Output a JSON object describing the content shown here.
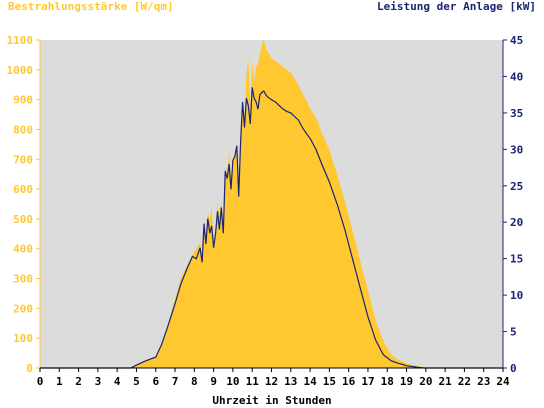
{
  "chart_data": {
    "type": "area",
    "ylabel_left": "Bestrahlungsstärke [W/qm]",
    "ylabel_right": "Leistung der Anlage [kW]",
    "xlabel": "Uhrzeit in Stunden",
    "xlim": [
      0,
      24
    ],
    "ylim_left": [
      0,
      1100
    ],
    "ylim_right": [
      0,
      45
    ],
    "x_ticks": [
      "0",
      "1",
      "2",
      "3",
      "4",
      "5",
      "6",
      "7",
      "8",
      "9",
      "10",
      "11",
      "12",
      "13",
      "14",
      "15",
      "16",
      "17",
      "18",
      "19",
      "20",
      "21",
      "22",
      "23",
      "24"
    ],
    "y_left_ticks": [
      "0",
      "100",
      "200",
      "300",
      "400",
      "500",
      "600",
      "700",
      "800",
      "900",
      "1000",
      "1100"
    ],
    "y_right_ticks": [
      "0",
      "5",
      "10",
      "15",
      "20",
      "25",
      "30",
      "35",
      "40",
      "45"
    ],
    "colors": {
      "irradiance": "#ffc830",
      "power": "#1a2470",
      "plot_bg": "#dcdcdc",
      "left_axis": "#ffc830",
      "right_axis": "#1a2470"
    },
    "series": [
      {
        "name": "Bestrahlungsstärke [W/qm]",
        "axis": "left",
        "x": [
          0,
          4.7,
          5,
          5.5,
          6,
          6.3,
          6.6,
          7,
          7.3,
          7.6,
          7.9,
          8.1,
          8.3,
          8.4,
          8.5,
          8.6,
          8.7,
          8.8,
          8.9,
          9.0,
          9.1,
          9.2,
          9.3,
          9.4,
          9.5,
          9.6,
          9.7,
          9.8,
          9.9,
          10.0,
          10.1,
          10.2,
          10.3,
          10.4,
          10.5,
          10.6,
          10.7,
          10.8,
          10.9,
          11.0,
          11.1,
          11.2,
          11.3,
          11.4,
          11.5,
          11.6,
          11.7,
          11.8,
          11.9,
          12.0,
          12.2,
          12.4,
          12.6,
          12.8,
          13.0,
          13.2,
          13.4,
          13.6,
          13.8,
          14.0,
          14.3,
          14.6,
          15.0,
          15.4,
          15.8,
          16.2,
          16.6,
          17.0,
          17.4,
          17.8,
          18.2,
          18.5,
          18.8,
          19.0,
          19.3,
          19.6,
          19.9,
          20.1,
          20.3,
          20.5,
          24
        ],
        "values": [
          0,
          0,
          10,
          25,
          40,
          80,
          140,
          230,
          300,
          340,
          380,
          400,
          420,
          360,
          470,
          430,
          520,
          500,
          540,
          420,
          470,
          560,
          510,
          560,
          480,
          680,
          650,
          730,
          640,
          690,
          720,
          750,
          580,
          770,
          880,
          820,
          980,
          1040,
          860,
          1030,
          960,
          1010,
          1020,
          1050,
          1090,
          1100,
          1070,
          1060,
          1050,
          1040,
          1030,
          1020,
          1010,
          1000,
          990,
          970,
          950,
          920,
          900,
          870,
          840,
          790,
          730,
          650,
          560,
          460,
          360,
          260,
          160,
          90,
          45,
          30,
          22,
          15,
          10,
          6,
          3,
          1,
          0,
          0,
          0
        ]
      },
      {
        "name": "Leistung der Anlage [kW]",
        "axis": "right",
        "x": [
          0,
          4.7,
          5,
          5.5,
          6,
          6.3,
          6.6,
          7,
          7.3,
          7.6,
          7.9,
          8.1,
          8.3,
          8.4,
          8.5,
          8.6,
          8.7,
          8.8,
          8.9,
          9.0,
          9.1,
          9.2,
          9.3,
          9.4,
          9.5,
          9.6,
          9.7,
          9.8,
          9.9,
          10.0,
          10.1,
          10.2,
          10.3,
          10.4,
          10.5,
          10.6,
          10.7,
          10.8,
          10.9,
          11.0,
          11.1,
          11.2,
          11.3,
          11.4,
          11.5,
          11.6,
          11.7,
          11.8,
          11.9,
          12.0,
          12.2,
          12.4,
          12.6,
          12.8,
          13.0,
          13.2,
          13.4,
          13.6,
          13.8,
          14.0,
          14.3,
          14.6,
          15.0,
          15.4,
          15.8,
          16.2,
          16.6,
          17.0,
          17.4,
          17.8,
          18.2,
          18.5,
          18.8,
          19.0,
          19.3,
          19.6,
          19.9,
          20.1,
          20.3,
          20.5,
          24
        ],
        "values": [
          0,
          0,
          0.4,
          1.0,
          1.5,
          3.2,
          5.5,
          8.8,
          11.5,
          13.5,
          15.3,
          15.0,
          16.5,
          14.5,
          19.8,
          17.0,
          20.5,
          18.5,
          19.5,
          16.5,
          18.5,
          21.5,
          19.0,
          22.0,
          18.5,
          27.0,
          26.0,
          28.0,
          24.5,
          28.5,
          29.0,
          30.5,
          23.5,
          31.0,
          36.5,
          33.0,
          37.0,
          36.0,
          33.5,
          38.5,
          37.0,
          36.5,
          35.5,
          37.5,
          37.8,
          38.0,
          37.5,
          37.2,
          37.0,
          36.8,
          36.5,
          36.0,
          35.5,
          35.2,
          35.0,
          34.5,
          34.0,
          33.0,
          32.2,
          31.5,
          30.0,
          28.0,
          25.5,
          22.5,
          19.0,
          15.0,
          11.0,
          7.0,
          3.8,
          1.8,
          1.0,
          0.7,
          0.5,
          0.3,
          0.2,
          0.1,
          0,
          0,
          0,
          0,
          0
        ]
      }
    ]
  }
}
